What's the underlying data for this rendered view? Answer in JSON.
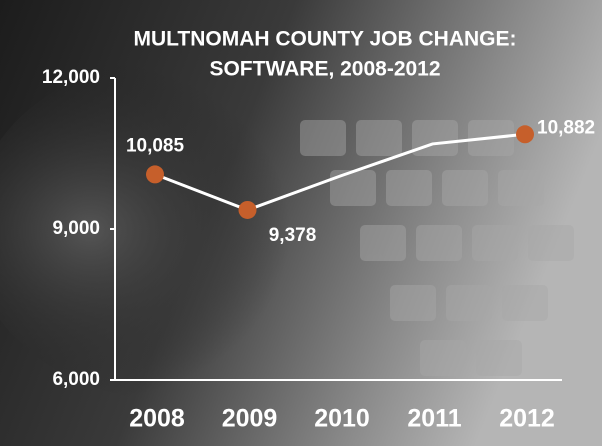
{
  "chart_data": {
    "type": "line",
    "title_lines": [
      "MULTNOMAH COUNTY JOB CHANGE:",
      "SOFTWARE, 2008-2012"
    ],
    "categories": [
      "2008",
      "2009",
      "2010",
      "2011",
      "2012"
    ],
    "values": [
      10085,
      9378,
      10050,
      10690,
      10882
    ],
    "value_labels": [
      "10,085",
      "9,378",
      null,
      null,
      "10,882"
    ],
    "line_color": "#ffffff",
    "marker_color": "#c65f2b",
    "ylim": [
      6000,
      12000
    ],
    "yticks": [
      {
        "value": 6000,
        "label": "6,000"
      },
      {
        "value": 9000,
        "label": "9,000"
      },
      {
        "value": 12000,
        "label": "12,000"
      }
    ]
  }
}
